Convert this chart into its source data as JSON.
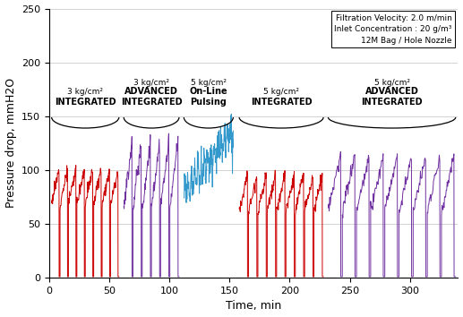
{
  "xlabel": "Time, min",
  "ylabel": "Pressure drop, mmH2O",
  "xlim": [
    0,
    340
  ],
  "ylim": [
    0,
    250
  ],
  "yticks": [
    0,
    50,
    100,
    150,
    200,
    250
  ],
  "xticks": [
    0,
    50,
    100,
    150,
    200,
    250,
    300
  ],
  "annotation_text": "Filtration Velocity: 2.0 m/min\nInlet Concentration : 20 g/m³\n12M Bag / Hole Nozzle",
  "sections": [
    {
      "label1": "3 kg/cm²",
      "label2": "INTEGRATED",
      "x_start": 2,
      "x_end": 58
    },
    {
      "label1": "3 kg/cm²",
      "label2": "ADVANCED\nINTEGRATED",
      "x_start": 62,
      "x_end": 108
    },
    {
      "label1": "5 kg/cm²",
      "label2": "On-Line\nPulsing",
      "x_start": 112,
      "x_end": 153
    },
    {
      "label1": "5 kg/cm²",
      "label2": "INTEGRATED",
      "x_start": 158,
      "x_end": 228
    },
    {
      "label1": "5 kg/cm²",
      "label2": "ADVANCED\nINTEGRATED",
      "x_start": 232,
      "x_end": 338
    }
  ],
  "bracket_y": 149,
  "colors": {
    "red": "#CC0000",
    "purple": "#7030A0",
    "blue": "#3399CC"
  },
  "section_colors": [
    "red",
    "purple",
    "blue",
    "red",
    "purple"
  ],
  "section1": {
    "t_start": 2,
    "t_end": 58,
    "base": 70,
    "amp": 30,
    "n_cycles": 8,
    "noise": 3
  },
  "section2": {
    "t_start": 62,
    "t_end": 108,
    "base": 64,
    "amp": 62,
    "n_cycles": 6,
    "noise": 4
  },
  "section3": {
    "t_start": 112,
    "t_end": 153,
    "base": 80,
    "amp": 55,
    "noise": 8
  },
  "section4": {
    "t_start": 158,
    "t_end": 228,
    "base": 62,
    "amp": 33,
    "n_cycles": 9,
    "noise": 3
  },
  "section5": {
    "t_start": 232,
    "t_end": 338,
    "base": 62,
    "amp": 50,
    "n_cycles": 9,
    "noise": 3
  }
}
